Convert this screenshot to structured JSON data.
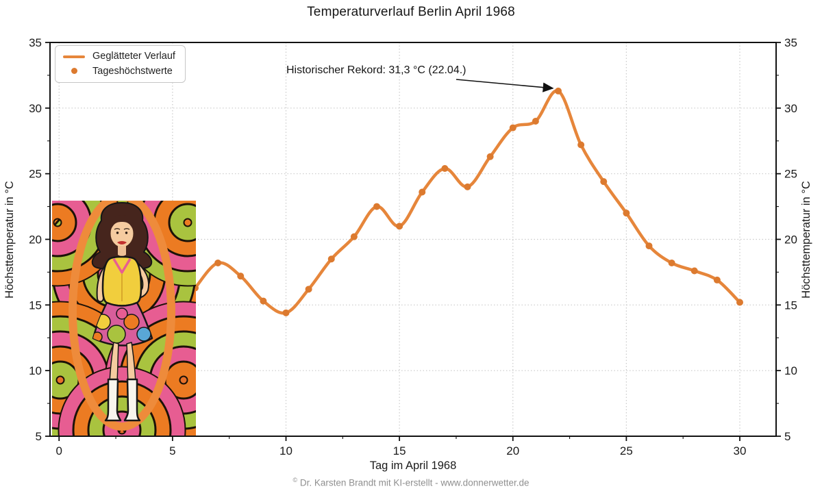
{
  "title": "Temperaturverlauf Berlin April 1968",
  "footer": {
    "symbol": "©",
    "text": "Dr. Karsten Brandt mit KI-erstellt - www.donnerwetter.de"
  },
  "inset_image": {
    "description": "Psychedelic 1960s pop-art illustration of a smiling woman with dark bouffant hair, a yellow sleeveless top, a multicoloured mini skirt and white go-go boots, standing in front of swirling pink, orange and green rings"
  },
  "chart_data": {
    "type": "line",
    "title": "Temperaturverlauf Berlin April 1968",
    "xlabel": "Tag im April 1968",
    "ylabel_left": "Höchsttemperatur in °C",
    "ylabel_right": "Höchsttemperatur in °C",
    "xlim": [
      -0.4,
      31.6
    ],
    "ylim": [
      5,
      35
    ],
    "x_ticks": [
      0,
      5,
      10,
      15,
      20,
      25,
      30
    ],
    "y_ticks": [
      5,
      10,
      15,
      20,
      25,
      30,
      35
    ],
    "minor_tick_step": 2.5,
    "grid": "dotted major gridlines, both axes",
    "legend": {
      "position": "upper-left",
      "entries": [
        {
          "label": "Geglätteter Verlauf",
          "type": "line"
        },
        {
          "label": "Tageshöchstwerte",
          "type": "marker"
        }
      ]
    },
    "colors": {
      "line": "#E6863B",
      "marker": "#DC7A2F",
      "grid": "#c9c9c9",
      "spine": "#111111"
    },
    "series": [
      {
        "name": "Tageshöchstwerte (geglätteter Verlauf)",
        "x": [
          6,
          7,
          8,
          9,
          10,
          11,
          12,
          13,
          14,
          15,
          16,
          17,
          18,
          19,
          20,
          21,
          22,
          23,
          24,
          25,
          26,
          27,
          28,
          29,
          30
        ],
        "y": [
          16.3,
          18.2,
          17.2,
          15.3,
          14.4,
          16.2,
          18.5,
          20.2,
          22.5,
          21.0,
          23.6,
          25.4,
          24.0,
          26.3,
          28.5,
          29.0,
          31.3,
          27.2,
          24.4,
          22.0,
          19.5,
          18.2,
          17.6,
          16.9,
          15.2
        ]
      }
    ],
    "annotation": {
      "text": "Historischer Rekord: 31,3 °C (22.04.)",
      "target_x": 22,
      "target_y": 31.3
    }
  }
}
